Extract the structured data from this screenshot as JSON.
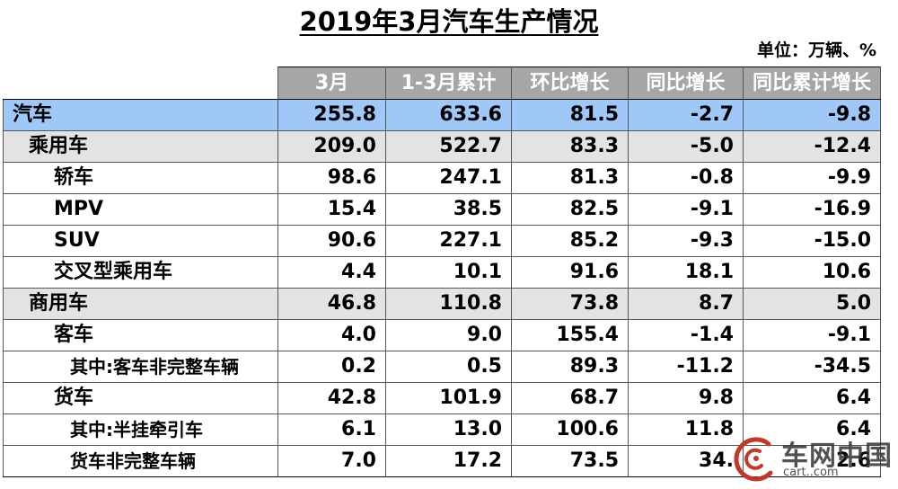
{
  "title": "2019年3月汽车生产情况",
  "unit": "单位：万辆、%",
  "columns": [
    "",
    "3月",
    "1-3月累计",
    "环比增长",
    "同比增长",
    "同比累计增长"
  ],
  "rows": [
    {
      "level": 0,
      "label": "汽车",
      "values": [
        "255.8",
        "633.6",
        "81.5",
        "-2.7",
        "-9.8"
      ]
    },
    {
      "level": 1,
      "label": "乘用车",
      "values": [
        "209.0",
        "522.7",
        "83.3",
        "-5.0",
        "-12.4"
      ]
    },
    {
      "level": 2,
      "label": "轿车",
      "values": [
        "98.6",
        "247.1",
        "81.3",
        "-0.8",
        "-9.9"
      ]
    },
    {
      "level": 2,
      "label": "MPV",
      "values": [
        "15.4",
        "38.5",
        "82.5",
        "-9.1",
        "-16.9"
      ]
    },
    {
      "level": 2,
      "label": "SUV",
      "values": [
        "90.6",
        "227.1",
        "85.2",
        "-9.3",
        "-15.0"
      ]
    },
    {
      "level": 2,
      "label": "交叉型乘用车",
      "values": [
        "4.4",
        "10.1",
        "91.6",
        "18.1",
        "10.6"
      ]
    },
    {
      "level": 1,
      "label": "商用车",
      "values": [
        "46.8",
        "110.8",
        "73.8",
        "8.7",
        "5.0"
      ]
    },
    {
      "level": 2,
      "label": "客车",
      "values": [
        "4.0",
        "9.0",
        "155.4",
        "-1.4",
        "-9.1"
      ]
    },
    {
      "level": 3,
      "label": "其中:客车非完整车辆",
      "values": [
        "0.2",
        "0.5",
        "89.3",
        "-11.2",
        "-34.5"
      ]
    },
    {
      "level": 2,
      "label": "货车",
      "values": [
        "42.8",
        "101.9",
        "68.7",
        "9.8",
        "6.4"
      ]
    },
    {
      "level": 3,
      "label": "其中:半挂牵引车",
      "values": [
        "6.1",
        "13.0",
        "100.6",
        "11.8",
        "6.4"
      ]
    },
    {
      "level": 3,
      "label": "货车非完整车辆",
      "values": [
        "7.0",
        "17.2",
        "73.5",
        "34.",
        "2.6"
      ]
    }
  ],
  "watermark": {
    "text": "车网中国",
    "url": "cart..com",
    "colors": {
      "accent": "#c0392b"
    }
  }
}
